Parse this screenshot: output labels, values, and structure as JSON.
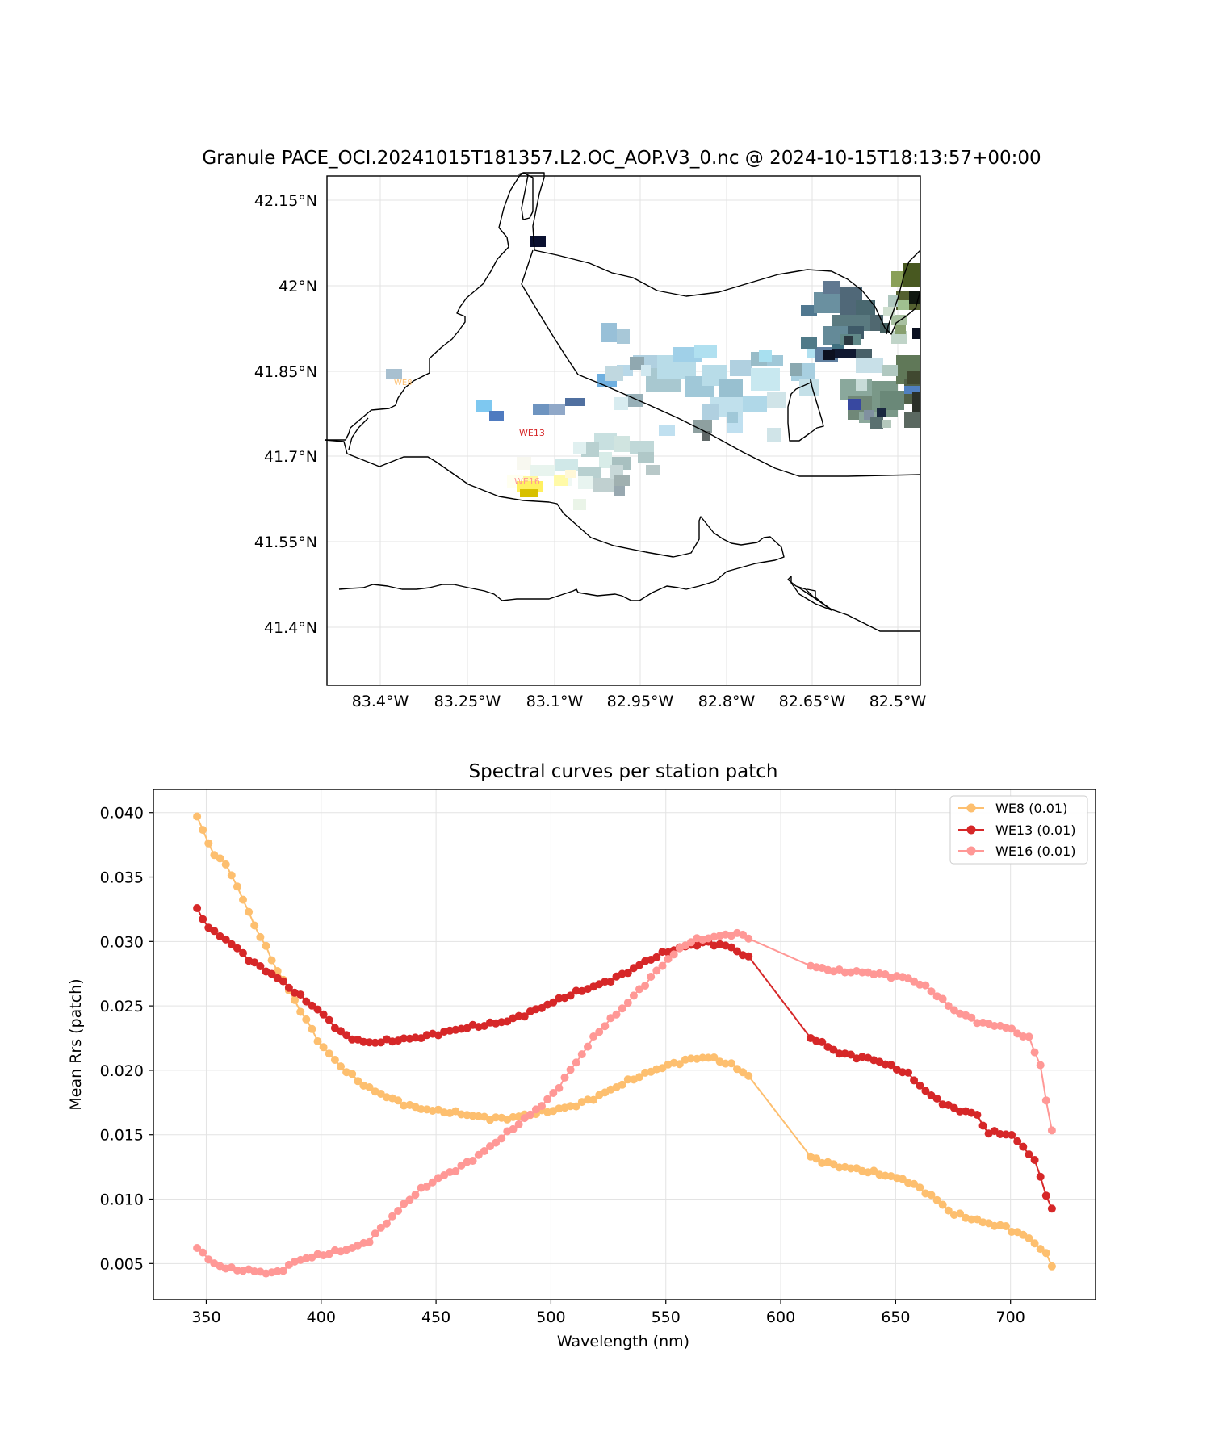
{
  "map": {
    "title": "Granule PACE_OCI.20241015T181357.L2.OC_AOP.V3_0.nc @ 2024-10-15T18:13:57+00:00",
    "lon_ticks": [
      "83.4°W",
      "83.25°W",
      "83.1°W",
      "82.95°W",
      "82.8°W",
      "82.65°W",
      "82.5°W"
    ],
    "lat_ticks": [
      "42.15°N",
      "42°N",
      "41.85°N",
      "41.7°N",
      "41.55°N",
      "41.4°N"
    ],
    "stations": [
      {
        "name": "WE8",
        "color": "#fdbf6f"
      },
      {
        "name": "WE13",
        "color": "#d62728"
      },
      {
        "name": "WE16",
        "color": "#ff9896"
      }
    ]
  },
  "chart_data": {
    "type": "line",
    "title": "Spectral curves per station patch",
    "xlabel": "Wavelength (nm)",
    "ylabel": "Mean Rrs (patch)",
    "xlim": [
      327,
      737
    ],
    "ylim": [
      0.0022,
      0.0418
    ],
    "xticks": [
      350,
      400,
      450,
      500,
      550,
      600,
      650,
      700
    ],
    "yticks": [
      0.005,
      0.01,
      0.015,
      0.02,
      0.025,
      0.03,
      0.035,
      0.04
    ],
    "xtick_labels": [
      "350",
      "400",
      "450",
      "500",
      "550",
      "600",
      "650",
      "700"
    ],
    "ytick_labels": [
      "0.005",
      "0.010",
      "0.015",
      "0.020",
      "0.025",
      "0.030",
      "0.035",
      "0.040"
    ],
    "grid": true,
    "legend_position": "top-right",
    "series": [
      {
        "name": "WE8 (0.01)",
        "color": "#fdbf6f",
        "anchors": [
          [
            346,
            0.0397
          ],
          [
            352,
            0.0372
          ],
          [
            360,
            0.0357
          ],
          [
            370,
            0.0316
          ],
          [
            380,
            0.028
          ],
          [
            390,
            0.025
          ],
          [
            400,
            0.022
          ],
          [
            410,
            0.02
          ],
          [
            420,
            0.0186
          ],
          [
            430,
            0.0179
          ],
          [
            440,
            0.0172
          ],
          [
            450,
            0.0168
          ],
          [
            460,
            0.0166
          ],
          [
            470,
            0.0164
          ],
          [
            480,
            0.0163
          ],
          [
            490,
            0.0165
          ],
          [
            500,
            0.0168
          ],
          [
            510,
            0.0173
          ],
          [
            520,
            0.018
          ],
          [
            530,
            0.0188
          ],
          [
            540,
            0.0196
          ],
          [
            550,
            0.0204
          ],
          [
            560,
            0.0209
          ],
          [
            568,
            0.021
          ],
          [
            578,
            0.0204
          ],
          [
            588,
            0.0194
          ],
          [
            613,
            0.0133
          ],
          [
            625,
            0.0126
          ],
          [
            640,
            0.012
          ],
          [
            655,
            0.0115
          ],
          [
            665,
            0.0104
          ],
          [
            675,
            0.0088
          ],
          [
            688,
            0.0082
          ],
          [
            698,
            0.0079
          ],
          [
            708,
            0.007
          ],
          [
            715,
            0.0058
          ],
          [
            720,
            0.0041
          ]
        ]
      },
      {
        "name": "WE13 (0.01)",
        "color": "#d62728",
        "anchors": [
          [
            346,
            0.0324
          ],
          [
            352,
            0.0308
          ],
          [
            360,
            0.03
          ],
          [
            370,
            0.0285
          ],
          [
            380,
            0.0273
          ],
          [
            390,
            0.0258
          ],
          [
            400,
            0.0245
          ],
          [
            410,
            0.0228
          ],
          [
            420,
            0.0221
          ],
          [
            430,
            0.0222
          ],
          [
            440,
            0.0225
          ],
          [
            450,
            0.0229
          ],
          [
            460,
            0.0232
          ],
          [
            470,
            0.0234
          ],
          [
            480,
            0.0238
          ],
          [
            490,
            0.0245
          ],
          [
            500,
            0.0252
          ],
          [
            510,
            0.0259
          ],
          [
            520,
            0.0266
          ],
          [
            530,
            0.0274
          ],
          [
            540,
            0.0283
          ],
          [
            550,
            0.0291
          ],
          [
            560,
            0.0297
          ],
          [
            568,
            0.03
          ],
          [
            578,
            0.0296
          ],
          [
            588,
            0.0284
          ],
          [
            613,
            0.0225
          ],
          [
            625,
            0.0214
          ],
          [
            640,
            0.0209
          ],
          [
            655,
            0.0197
          ],
          [
            665,
            0.0181
          ],
          [
            675,
            0.0171
          ],
          [
            685,
            0.0166
          ],
          [
            690,
            0.0151
          ],
          [
            700,
            0.015
          ],
          [
            710,
            0.0133
          ],
          [
            715,
            0.0107
          ],
          [
            720,
            0.0083
          ]
        ]
      },
      {
        "name": "WE16 (0.01)",
        "color": "#ff9896",
        "anchors": [
          [
            346,
            0.0064
          ],
          [
            352,
            0.0051
          ],
          [
            360,
            0.0045
          ],
          [
            370,
            0.0044
          ],
          [
            380,
            0.0043
          ],
          [
            390,
            0.0053
          ],
          [
            400,
            0.0056
          ],
          [
            410,
            0.006
          ],
          [
            420,
            0.0067
          ],
          [
            430,
            0.0085
          ],
          [
            440,
            0.0102
          ],
          [
            450,
            0.0115
          ],
          [
            460,
            0.0125
          ],
          [
            470,
            0.0136
          ],
          [
            480,
            0.0149
          ],
          [
            490,
            0.0164
          ],
          [
            500,
            0.018
          ],
          [
            510,
            0.0204
          ],
          [
            520,
            0.0228
          ],
          [
            530,
            0.0246
          ],
          [
            540,
            0.0266
          ],
          [
            550,
            0.0285
          ],
          [
            560,
            0.0299
          ],
          [
            570,
            0.0303
          ],
          [
            580,
            0.0307
          ],
          [
            588,
            0.0303
          ],
          [
            613,
            0.0281
          ],
          [
            625,
            0.0276
          ],
          [
            640,
            0.0276
          ],
          [
            655,
            0.0272
          ],
          [
            665,
            0.0262
          ],
          [
            675,
            0.0247
          ],
          [
            688,
            0.0237
          ],
          [
            697,
            0.0234
          ],
          [
            708,
            0.0224
          ],
          [
            713,
            0.0204
          ],
          [
            717,
            0.016
          ],
          [
            720,
            0.014
          ]
        ]
      }
    ]
  }
}
